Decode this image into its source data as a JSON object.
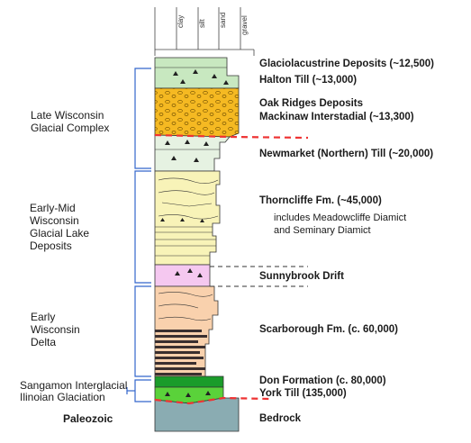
{
  "grain_scale": [
    "clay",
    "silt",
    "sand",
    "gravel"
  ],
  "left_labels": {
    "late_wisconsin": [
      "Late Wisconsin",
      "Glacial Complex"
    ],
    "early_mid": [
      "Early-Mid",
      "Wisconsin",
      "Glacial Lake",
      "Deposits"
    ],
    "early_delta": [
      "Early",
      "Wisconsin",
      "Delta"
    ],
    "sangamon": "Sangamon Interglacial",
    "illinoian": "Ilinoian Glaciation",
    "paleozoic": "Paleozoic"
  },
  "right_labels": {
    "glaciolacustrine": "Glaciolacustrine Deposits (~12,500)",
    "halton": "Halton Till (~13,000)",
    "oak_ridges": "Oak Ridges Deposits",
    "mackinaw": "Mackinaw Interstadial (~13,300)",
    "newmarket": "Newmarket (Northern) Till (~20,000)",
    "thorncliffe": "Thorncliffe Fm. (~45,000)",
    "thorncliffe_note1": "includes Meadowcliffe Diamict",
    "thorncliffe_note2": "and Seminary Diamict",
    "sunnybrook": "Sunnybrook Drift",
    "scarborough": "Scarborough Fm. (c. 60,000)",
    "don": "Don Formation (c. 80,000)",
    "york": "York Till (135,000)",
    "bedrock": "Bedrock"
  },
  "colors": {
    "halton_till": "#c8e8c0",
    "oak_ridges": "#f5b922",
    "newmarket": "#e6f2e2",
    "thorncliffe": "#f8f3b8",
    "sunnybrook": "#f5c8f0",
    "scarborough": "#f9d1ad",
    "scarborough_dark": "#3a2f2f",
    "don": "#1a9c2a",
    "york": "#5ad23a",
    "bedrock": "#8aacb2",
    "bracket": "#3366cc",
    "unconformity": "#ee3333"
  }
}
